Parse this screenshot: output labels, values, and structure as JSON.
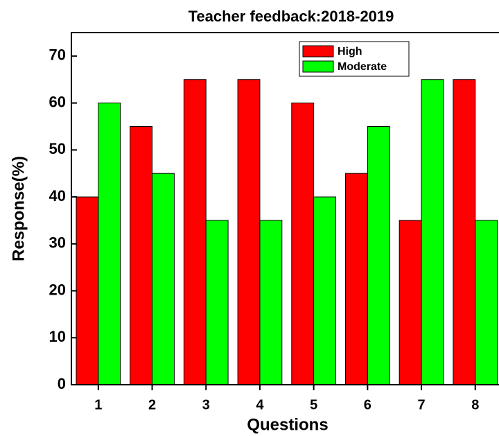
{
  "chart_data": {
    "type": "bar",
    "title": "Teacher feedback:2018-2019",
    "x_label": "Questions",
    "y_label": "Response(%)",
    "categories": [
      "1",
      "2",
      "3",
      "4",
      "5",
      "6",
      "7",
      "8"
    ],
    "series": [
      {
        "name": "High",
        "color": "#ff0000",
        "values": [
          40,
          55,
          65,
          65,
          60,
          45,
          35,
          65
        ]
      },
      {
        "name": "Moderate",
        "color": "#00ff00",
        "values": [
          60,
          45,
          35,
          35,
          40,
          55,
          65,
          35
        ]
      }
    ],
    "ylim": [
      0,
      75
    ],
    "yticks": [
      0,
      10,
      20,
      30,
      40,
      50,
      60,
      70
    ],
    "legend": "upper right"
  }
}
